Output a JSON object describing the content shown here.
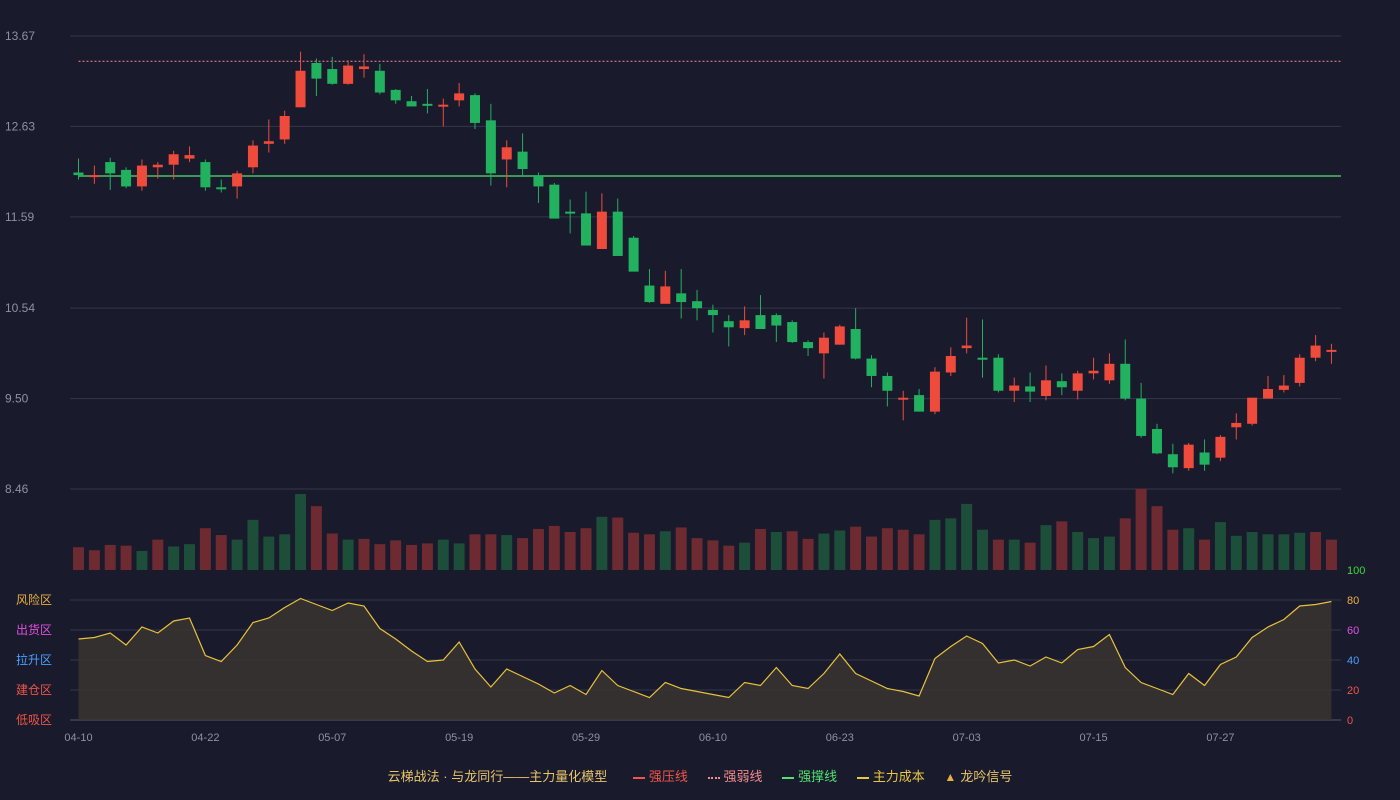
{
  "chart_data": {
    "type": "candlestick",
    "price_axis": {
      "ticks": [
        "13.67",
        "12.63",
        "11.59",
        "10.54",
        "9.50",
        "8.46"
      ],
      "min": 8.46,
      "max": 13.67
    },
    "date_ticks": [
      {
        "index": 0,
        "label": "04-10"
      },
      {
        "index": 8,
        "label": "04-22"
      },
      {
        "index": 16,
        "label": "05-07"
      },
      {
        "index": 24,
        "label": "05-19"
      },
      {
        "index": 32,
        "label": "05-29"
      },
      {
        "index": 40,
        "label": "06-10"
      },
      {
        "index": 48,
        "label": "06-23"
      },
      {
        "index": 56,
        "label": "07-03"
      },
      {
        "index": 64,
        "label": "07-15"
      },
      {
        "index": 72,
        "label": "07-27"
      }
    ],
    "candles": [
      [
        12.1,
        12.07,
        12.26,
        12.02
      ],
      [
        12.06,
        12.07,
        12.18,
        11.97
      ],
      [
        12.22,
        12.09,
        12.27,
        11.9
      ],
      [
        12.13,
        11.94,
        12.16,
        11.92
      ],
      [
        11.94,
        12.18,
        12.25,
        11.89
      ],
      [
        12.16,
        12.19,
        12.22,
        12.03
      ],
      [
        12.19,
        12.31,
        12.35,
        12.02
      ],
      [
        12.26,
        12.3,
        12.4,
        12.22
      ],
      [
        12.22,
        11.93,
        12.25,
        11.89
      ],
      [
        11.93,
        11.92,
        12.02,
        11.87
      ],
      [
        11.94,
        12.09,
        12.12,
        11.8
      ],
      [
        12.16,
        12.41,
        12.47,
        12.09
      ],
      [
        12.43,
        12.46,
        12.71,
        12.33
      ],
      [
        12.48,
        12.75,
        12.81,
        12.43
      ],
      [
        12.85,
        13.27,
        13.49,
        12.85
      ],
      [
        13.36,
        13.18,
        13.41,
        12.98
      ],
      [
        13.29,
        13.12,
        13.43,
        13.11
      ],
      [
        13.12,
        13.33,
        13.39,
        13.11
      ],
      [
        13.29,
        13.32,
        13.46,
        13.19
      ],
      [
        13.27,
        13.02,
        13.35,
        13.0
      ],
      [
        13.05,
        12.93,
        13.06,
        12.89
      ],
      [
        12.92,
        12.86,
        12.98,
        12.86
      ],
      [
        12.89,
        12.87,
        13.06,
        12.78
      ],
      [
        12.87,
        12.88,
        12.95,
        12.63
      ],
      [
        12.93,
        13.01,
        13.13,
        12.86
      ],
      [
        12.99,
        12.67,
        13.01,
        12.6
      ],
      [
        12.7,
        12.09,
        12.89,
        11.95
      ],
      [
        12.25,
        12.39,
        12.47,
        11.93
      ],
      [
        12.34,
        12.14,
        12.55,
        12.07
      ],
      [
        12.07,
        11.94,
        12.1,
        11.75
      ],
      [
        11.96,
        11.57,
        11.98,
        11.58
      ],
      [
        11.65,
        11.63,
        11.79,
        11.4
      ],
      [
        11.63,
        11.26,
        11.88,
        11.27
      ],
      [
        11.22,
        11.65,
        11.86,
        11.22
      ],
      [
        11.65,
        11.14,
        11.8,
        11.15
      ],
      [
        11.35,
        10.96,
        11.37,
        10.97
      ],
      [
        10.8,
        10.61,
        10.99,
        10.6
      ],
      [
        10.59,
        10.79,
        10.97,
        10.61
      ],
      [
        10.71,
        10.61,
        10.99,
        10.42
      ],
      [
        10.62,
        10.54,
        10.75,
        10.4
      ],
      [
        10.52,
        10.46,
        10.58,
        10.26
      ],
      [
        10.39,
        10.32,
        10.46,
        10.1
      ],
      [
        10.31,
        10.4,
        10.56,
        10.23
      ],
      [
        10.46,
        10.3,
        10.69,
        10.3
      ],
      [
        10.46,
        10.34,
        10.48,
        10.15
      ],
      [
        10.38,
        10.15,
        10.4,
        10.14
      ],
      [
        10.15,
        10.08,
        10.17,
        9.99
      ],
      [
        10.02,
        10.2,
        10.26,
        9.73
      ],
      [
        10.12,
        10.33,
        10.35,
        10.12
      ],
      [
        10.3,
        9.96,
        10.54,
        9.95
      ],
      [
        9.96,
        9.76,
        10.0,
        9.63
      ],
      [
        9.76,
        9.59,
        9.8,
        9.41
      ],
      [
        9.51,
        9.51,
        9.59,
        9.25
      ],
      [
        9.54,
        9.35,
        9.61,
        9.35
      ],
      [
        9.35,
        9.81,
        9.86,
        9.32
      ],
      [
        9.8,
        9.99,
        10.09,
        9.76
      ],
      [
        10.08,
        10.11,
        10.43,
        10.02
      ],
      [
        9.97,
        9.96,
        10.41,
        9.74
      ],
      [
        9.97,
        9.59,
        10.01,
        9.57
      ],
      [
        9.59,
        9.65,
        9.74,
        9.46
      ],
      [
        9.64,
        9.58,
        9.8,
        9.46
      ],
      [
        9.53,
        9.71,
        9.88,
        9.48
      ],
      [
        9.7,
        9.63,
        9.79,
        9.54
      ],
      [
        9.59,
        9.79,
        9.82,
        9.49
      ],
      [
        9.79,
        9.82,
        9.97,
        9.72
      ],
      [
        9.71,
        9.9,
        10.02,
        9.67
      ],
      [
        9.9,
        9.5,
        10.18,
        9.48
      ],
      [
        9.5,
        9.07,
        9.68,
        9.05
      ],
      [
        9.15,
        8.87,
        9.21,
        8.86
      ],
      [
        8.86,
        8.71,
        8.98,
        8.64
      ],
      [
        8.7,
        8.97,
        8.99,
        8.67
      ],
      [
        8.88,
        8.74,
        9.03,
        8.67
      ],
      [
        8.82,
        9.06,
        9.08,
        8.78
      ],
      [
        9.17,
        9.22,
        9.33,
        9.03
      ],
      [
        9.21,
        9.51,
        9.51,
        9.19
      ],
      [
        9.5,
        9.61,
        9.76,
        9.5
      ],
      [
        9.6,
        9.65,
        9.77,
        9.57
      ],
      [
        9.68,
        9.97,
        10.01,
        9.64
      ],
      [
        9.97,
        10.11,
        10.23,
        9.93
      ],
      [
        10.06,
        10.06,
        10.13,
        9.9
      ]
    ],
    "volume": [
      [
        0.3,
        "r"
      ],
      [
        0.26,
        "r"
      ],
      [
        0.33,
        "r"
      ],
      [
        0.32,
        "r"
      ],
      [
        0.25,
        "g"
      ],
      [
        0.4,
        "r"
      ],
      [
        0.31,
        "g"
      ],
      [
        0.34,
        "g"
      ],
      [
        0.55,
        "r"
      ],
      [
        0.46,
        "r"
      ],
      [
        0.4,
        "g"
      ],
      [
        0.66,
        "g"
      ],
      [
        0.44,
        "g"
      ],
      [
        0.47,
        "g"
      ],
      [
        1.0,
        "g"
      ],
      [
        0.84,
        "r"
      ],
      [
        0.48,
        "r"
      ],
      [
        0.4,
        "g"
      ],
      [
        0.41,
        "r"
      ],
      [
        0.34,
        "r"
      ],
      [
        0.39,
        "r"
      ],
      [
        0.33,
        "r"
      ],
      [
        0.35,
        "r"
      ],
      [
        0.4,
        "g"
      ],
      [
        0.35,
        "g"
      ],
      [
        0.47,
        "r"
      ],
      [
        0.47,
        "r"
      ],
      [
        0.46,
        "g"
      ],
      [
        0.42,
        "r"
      ],
      [
        0.54,
        "r"
      ],
      [
        0.58,
        "r"
      ],
      [
        0.5,
        "r"
      ],
      [
        0.55,
        "r"
      ],
      [
        0.7,
        "g"
      ],
      [
        0.69,
        "r"
      ],
      [
        0.49,
        "r"
      ],
      [
        0.47,
        "r"
      ],
      [
        0.51,
        "g"
      ],
      [
        0.56,
        "r"
      ],
      [
        0.42,
        "r"
      ],
      [
        0.39,
        "r"
      ],
      [
        0.32,
        "r"
      ],
      [
        0.36,
        "g"
      ],
      [
        0.54,
        "r"
      ],
      [
        0.5,
        "g"
      ],
      [
        0.51,
        "r"
      ],
      [
        0.41,
        "r"
      ],
      [
        0.48,
        "g"
      ],
      [
        0.52,
        "g"
      ],
      [
        0.57,
        "r"
      ],
      [
        0.44,
        "r"
      ],
      [
        0.55,
        "r"
      ],
      [
        0.53,
        "r"
      ],
      [
        0.47,
        "r"
      ],
      [
        0.66,
        "g"
      ],
      [
        0.68,
        "g"
      ],
      [
        0.87,
        "g"
      ],
      [
        0.53,
        "g"
      ],
      [
        0.4,
        "r"
      ],
      [
        0.4,
        "g"
      ],
      [
        0.36,
        "r"
      ],
      [
        0.59,
        "g"
      ],
      [
        0.64,
        "r"
      ],
      [
        0.5,
        "g"
      ],
      [
        0.42,
        "g"
      ],
      [
        0.44,
        "g"
      ],
      [
        0.68,
        "r"
      ],
      [
        1.07,
        "r"
      ],
      [
        0.84,
        "r"
      ],
      [
        0.53,
        "r"
      ],
      [
        0.55,
        "g"
      ],
      [
        0.4,
        "r"
      ],
      [
        0.63,
        "g"
      ],
      [
        0.45,
        "g"
      ],
      [
        0.5,
        "g"
      ],
      [
        0.47,
        "g"
      ],
      [
        0.47,
        "g"
      ],
      [
        0.49,
        "g"
      ],
      [
        0.5,
        "r"
      ],
      [
        0.4,
        "r"
      ]
    ],
    "main_cost_line": [
      54,
      55,
      58,
      50,
      62,
      58,
      66,
      68,
      43,
      39,
      50,
      65,
      68,
      75,
      81,
      77,
      73,
      78,
      76,
      61,
      54,
      46,
      39,
      40,
      52,
      34,
      22,
      34,
      29,
      24,
      18,
      23,
      17,
      33,
      23,
      19,
      15,
      25,
      21,
      19,
      17,
      15,
      25,
      23,
      35,
      23,
      21,
      31,
      44,
      31,
      26,
      21,
      19,
      16,
      41,
      49,
      56,
      51,
      38,
      40,
      36,
      42,
      38,
      47,
      49,
      57,
      35,
      25,
      21,
      17,
      31,
      23,
      37,
      42,
      55,
      62,
      67,
      76,
      77,
      79
    ],
    "levels": {
      "resistance": null,
      "weak_resistance": 13.38,
      "support": 12.06
    },
    "indicator_axis": {
      "ticks": [
        "100",
        "80",
        "60",
        "40",
        "20",
        "0"
      ]
    },
    "zones": [
      "风险区",
      "出货区",
      "拉升区",
      "建仓区",
      "低吸区"
    ]
  },
  "colors": {
    "up": "#ef4b3d",
    "down": "#21b15f",
    "vol_up": "#6d2a31",
    "vol_down": "#1c4e39",
    "cost_line": "#e8c23a",
    "cost_fill": "#3a3530",
    "support": "#52e070",
    "weak": "#f08c8c",
    "grid": "#34364a",
    "axis_text": "#8e90a4",
    "zone_colors": [
      "#e8b040",
      "#e050e0",
      "#4aa0ff",
      "#f05548",
      "#f05548"
    ],
    "ind_tick_colors": [
      "#3cd83c",
      "#e8b040",
      "#e050e0",
      "#4aa0ff",
      "#f05548",
      "#f05548"
    ]
  },
  "legend": {
    "title": "云梯战法 · 与龙同行——主力量化模型",
    "resistance": "强压线",
    "weak_resistance": "强弱线",
    "support": "强撑线",
    "main_cost": "主力成本",
    "signal": "龙吟信号",
    "signal_marker": "▲"
  }
}
